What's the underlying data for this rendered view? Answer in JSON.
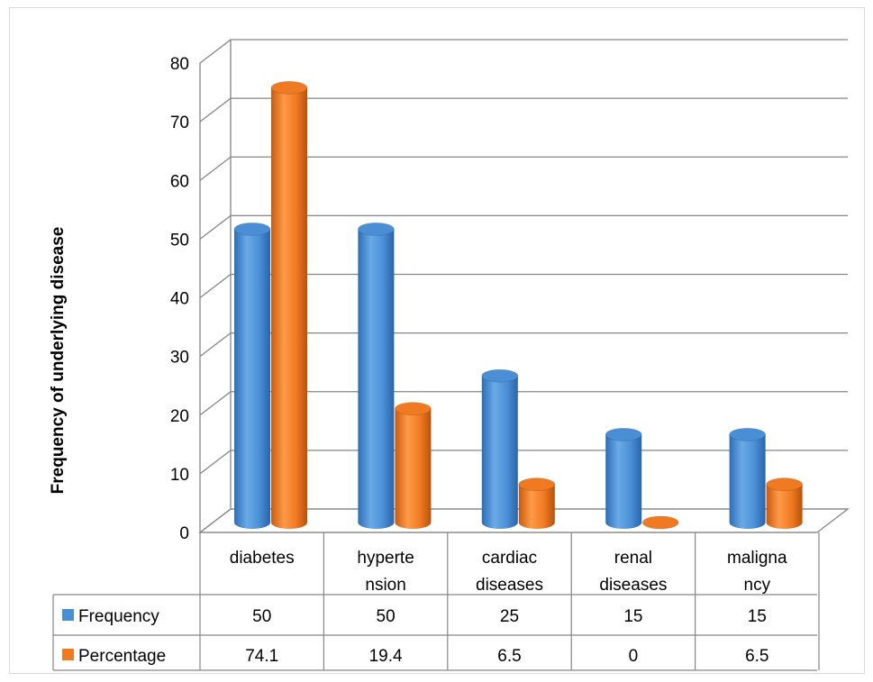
{
  "chart_data": {
    "type": "bar",
    "title": "",
    "ylabel": "Frequency of underlying disease",
    "xlabel": "",
    "ylim": [
      0,
      80
    ],
    "yticks": [
      0,
      10,
      20,
      30,
      40,
      50,
      60,
      70,
      80
    ],
    "categories": [
      [
        "diabetes"
      ],
      [
        "hyperte",
        "nsion"
      ],
      [
        "cardiac",
        "diseases"
      ],
      [
        "renal",
        "diseases"
      ],
      [
        "maligna",
        "ncy"
      ]
    ],
    "series": [
      {
        "name": "Frequency",
        "color": "#4a8fd6",
        "values": [
          50,
          50,
          25,
          15,
          15
        ]
      },
      {
        "name": "Percentage",
        "color": "#f07a22",
        "values": [
          74.1,
          19.4,
          6.5,
          0,
          6.5
        ]
      }
    ],
    "data_table": {
      "rows": [
        {
          "label": "Frequency",
          "cells": [
            "50",
            "50",
            "25",
            "15",
            "15"
          ]
        },
        {
          "label": "Percentage",
          "cells": [
            "74.1",
            "19.4",
            "6.5",
            "0",
            "6.5"
          ]
        }
      ]
    },
    "grid": true,
    "legend": "data-table"
  }
}
